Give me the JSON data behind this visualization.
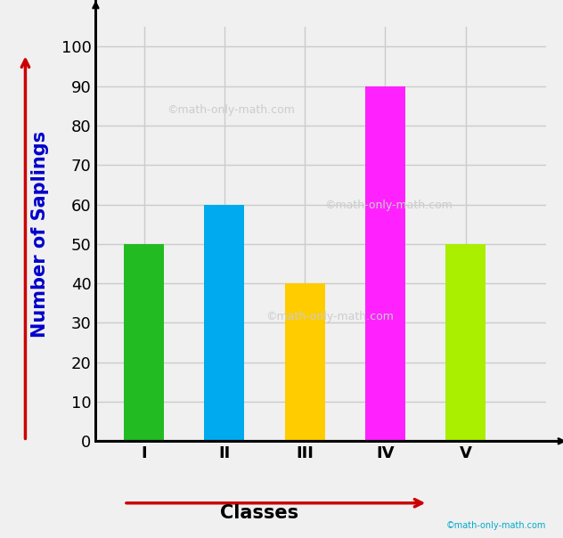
{
  "categories": [
    "I",
    "II",
    "III",
    "IV",
    "V"
  ],
  "values": [
    50,
    60,
    40,
    90,
    50
  ],
  "bar_colors": [
    "#22bb22",
    "#00aaee",
    "#ffcc00",
    "#ff22ff",
    "#aaee00"
  ],
  "bar_width": 0.5,
  "xlabel": "Classes",
  "ylabel": "Number of Saplings",
  "ylim": [
    0,
    105
  ],
  "yticks": [
    0,
    10,
    20,
    30,
    40,
    50,
    60,
    70,
    80,
    90,
    100
  ],
  "grid_color": "#cccccc",
  "background_color": "#f0f0f0",
  "watermark_text": "©math-only-math.com",
  "watermark_color": "#cccccc",
  "ylabel_color": "#0000cc",
  "arrow_color": "#cc0000",
  "copyright_color": "#00aacc",
  "tick_label_fontsize": 13,
  "axis_label_fontsize": 15
}
